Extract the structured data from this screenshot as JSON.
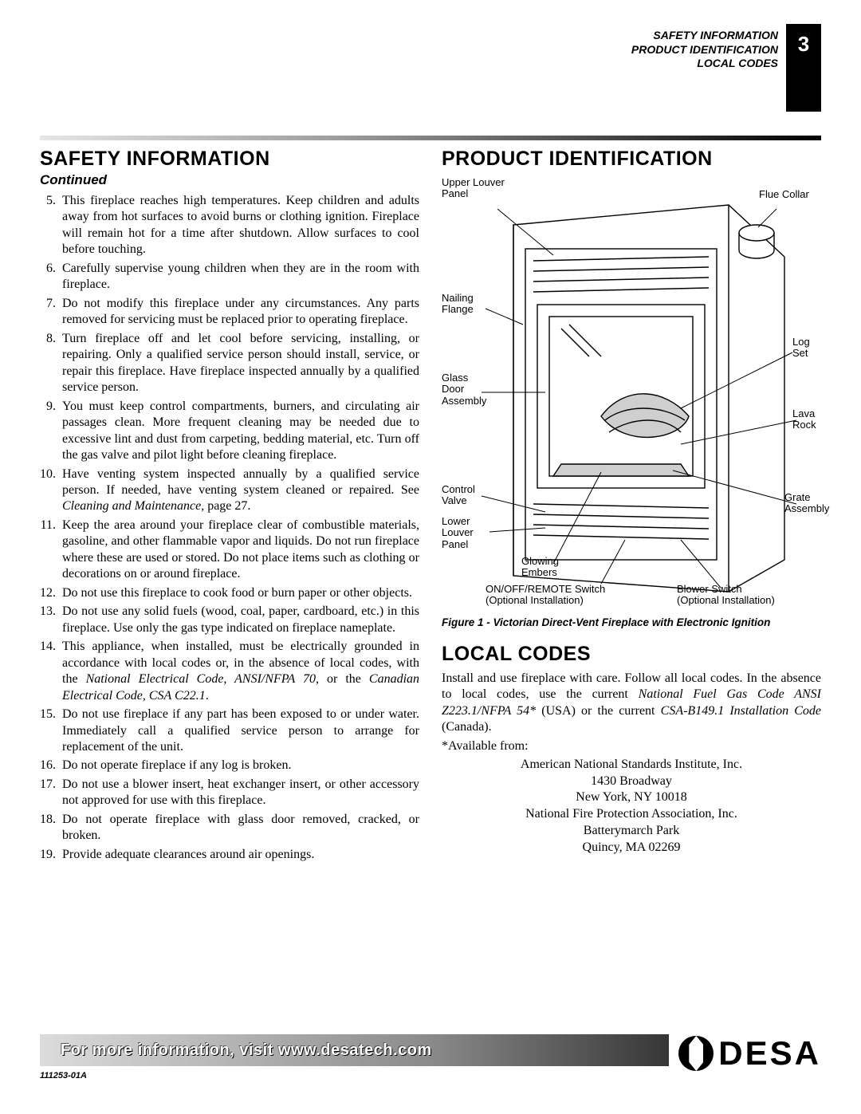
{
  "header": {
    "lines": [
      "SAFETY INFORMATION",
      "PRODUCT IDENTIFICATION",
      "LOCAL CODES"
    ],
    "page_number": "3"
  },
  "left": {
    "title": "SAFETY INFORMATION",
    "continued": "Continued",
    "start_number": 5,
    "items": [
      "This fireplace reaches high temperatures. Keep children and adults away from hot surfaces to avoid burns or clothing ignition. Fireplace will remain hot for a time after shutdown. Allow surfaces to cool before touching.",
      "Carefully supervise young children when they are in the room with fireplace.",
      "Do not modify this fireplace under any circumstances. Any parts removed for servicing must be replaced prior to operating fireplace.",
      "Turn fireplace off and let cool before servicing, installing, or repairing. Only a qualified service person should install, service, or repair this fireplace. Have fireplace inspected annually by a qualified service person.",
      "You must keep control compartments, burners, and circulating air passages clean. More frequent cleaning may be needed due to excessive lint and dust from carpeting, bedding material, etc. Turn off the gas valve and pilot light before cleaning fireplace.",
      "Have venting system inspected annually by a qualified service person. If needed, have venting system cleaned or repaired. See <i>Cleaning and Maintenance</i>, page 27.",
      "Keep the area around your fireplace clear of combustible materials, gasoline, and other flammable vapor and liquids. Do not run fireplace where these are used or stored. Do not place items such as clothing or decorations on or around fireplace.",
      "Do not use this fireplace to cook food or burn paper or other objects.",
      "Do not use any solid fuels (wood, coal, paper, cardboard, etc.) in this fireplace. Use only the gas type indicated on fireplace nameplate.",
      "This appliance, when installed, must be electrically grounded in accordance with local codes or, in the absence of local codes, with the <i>National Electrical Code, ANSI/NFPA 70</i>, or the <i>Canadian Electrical Code, CSA C22.1</i>.",
      "Do not use fireplace if any part has been exposed to or under water. Immediately call a qualified service person to arrange for replacement of the unit.",
      "Do not operate fireplace if any log is broken.",
      "Do not use a blower insert, heat exchanger insert, or other accessory not approved for use with this fireplace.",
      "Do not operate fireplace with glass door removed, cracked, or broken.",
      "Provide adequate clearances around air openings."
    ]
  },
  "right": {
    "product_title": "PRODUCT IDENTIFICATION",
    "figure_caption": "Figure 1 - Victorian Direct-Vent Fireplace with Electronic Ignition",
    "diagram": {
      "labels": {
        "upper_louver": "Upper Louver\nPanel",
        "flue_collar": "Flue Collar",
        "nailing_flange": "Nailing\nFlange",
        "glass_door": "Glass\nDoor\nAssembly",
        "log_set": "Log\nSet",
        "lava_rock": "Lava\nRock",
        "control_valve": "Control\nValve",
        "lower_louver": "Lower\nLouver\nPanel",
        "glowing_embers": "Glowing\nEmbers",
        "grate": "Grate\nAssembly",
        "on_off": "ON/OFF/REMOTE Switch\n(Optional Installation)",
        "blower": "Blower Switch\n(Optional Installation)"
      },
      "colors": {
        "line": "#000000",
        "fill_light": "#f5f5f5",
        "fill_mid": "#cfcfcf"
      },
      "line_width": 1.4
    },
    "local_title": "LOCAL CODES",
    "local_body": "Install and use fireplace with care. Follow all local codes. In the absence to local codes, use the current <i>National Fuel Gas Code ANSI Z223.1/NFPA 54*</i> (USA) or the current <i>CSA-B149.1 Installation Code</i> (Canada).",
    "available": "*Available from:",
    "addresses": [
      "American National Standards Institute, Inc.",
      "1430 Broadway",
      "New York, NY 10018",
      "National Fire Protection Association, Inc.",
      "Batterymarch Park",
      "Quincy, MA 02269"
    ]
  },
  "footer": {
    "text": "For more information, visit www.desatech.com",
    "logo": "DESA",
    "docnum": "111253-01A"
  }
}
